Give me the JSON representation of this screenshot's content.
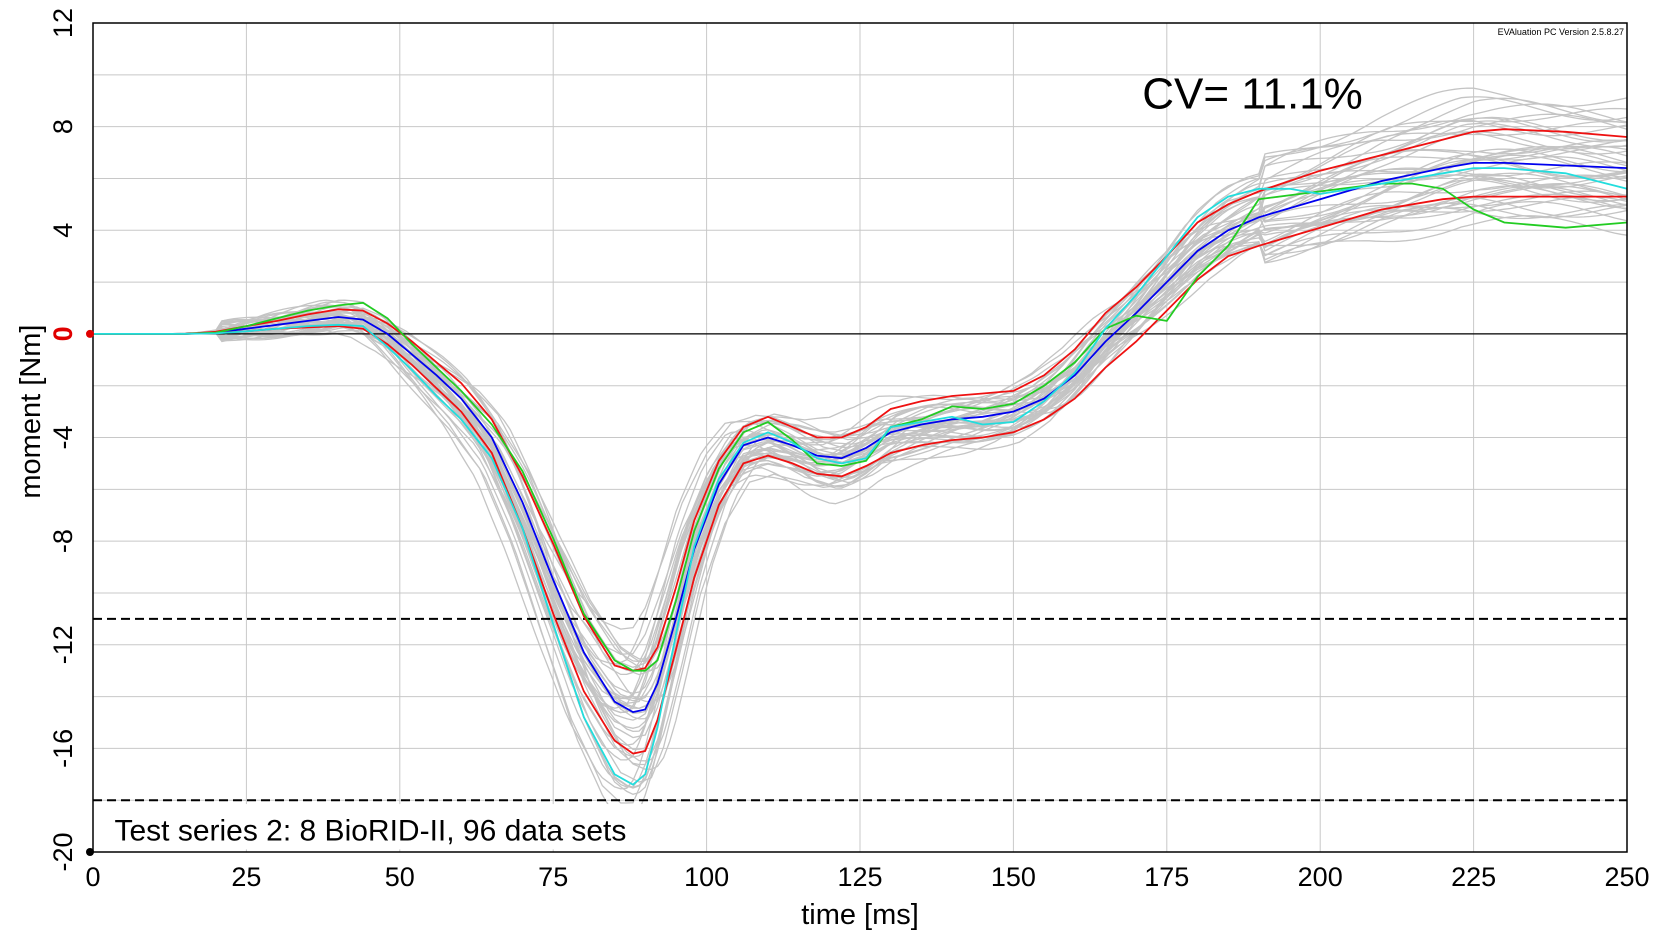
{
  "chart_data": {
    "type": "line",
    "xlabel": "time [ms]",
    "ylabel": "moment [Nm]",
    "xlim": [
      0,
      250
    ],
    "ylim": [
      -20,
      12
    ],
    "x_ticks": [
      0,
      25,
      50,
      75,
      100,
      125,
      150,
      175,
      200,
      225,
      250
    ],
    "y_ticks": [
      -20,
      -16,
      -12,
      -8,
      -4,
      0,
      4,
      8,
      12
    ],
    "minor_y_step": 2,
    "grid": true,
    "annotations": {
      "cv": "CV= 11.1%",
      "series_note": "Test series 2: 8 BioRID-II, 96 data sets",
      "version": "EVAluation PC Version 2.5.8.27"
    },
    "reference_lines": [
      {
        "y": 0,
        "style": "solid",
        "color": "#000000"
      },
      {
        "y": -11,
        "style": "dashed",
        "color": "#000000"
      },
      {
        "y": -18,
        "style": "dashed",
        "color": "#000000"
      }
    ],
    "highlighted_zero_label_color": "#e00000",
    "grey_band": {
      "count": 96,
      "color": "#c4c4c4",
      "note": "individual data sets scattered around mean"
    },
    "series": [
      {
        "color": "#0000ee",
        "x": [
          0,
          15,
          20,
          25,
          30,
          35,
          40,
          44,
          48,
          52,
          56,
          60,
          65,
          70,
          75,
          80,
          85,
          88,
          90,
          92,
          95,
          98,
          102,
          106,
          110,
          114,
          118,
          122,
          126,
          130,
          135,
          140,
          145,
          150,
          155,
          160,
          165,
          170,
          175,
          180,
          185,
          190,
          200,
          210,
          220,
          225,
          230,
          240,
          250
        ],
        "y": [
          0,
          0,
          0.05,
          0.2,
          0.35,
          0.5,
          0.65,
          0.55,
          0,
          -0.8,
          -1.6,
          -2.5,
          -4,
          -6.5,
          -9.5,
          -12.3,
          -14.2,
          -14.6,
          -14.5,
          -13.5,
          -11,
          -8.3,
          -5.8,
          -4.3,
          -4.0,
          -4.3,
          -4.7,
          -4.8,
          -4.4,
          -3.8,
          -3.5,
          -3.3,
          -3.2,
          -3.0,
          -2.5,
          -1.6,
          -0.3,
          0.8,
          2.0,
          3.2,
          4.0,
          4.5,
          5.2,
          5.9,
          6.4,
          6.6,
          6.6,
          6.5,
          6.4
        ]
      },
      {
        "color": "#ee1111",
        "x": [
          0,
          15,
          20,
          25,
          30,
          35,
          40,
          44,
          48,
          52,
          56,
          60,
          65,
          70,
          75,
          80,
          85,
          88,
          90,
          92,
          95,
          98,
          102,
          106,
          110,
          114,
          118,
          122,
          126,
          130,
          135,
          140,
          145,
          150,
          155,
          160,
          165,
          170,
          175,
          180,
          185,
          190,
          200,
          210,
          220,
          225,
          230,
          240,
          250
        ],
        "y": [
          0,
          0,
          0.08,
          0.3,
          0.5,
          0.75,
          0.95,
          0.9,
          0.4,
          -0.3,
          -1.1,
          -1.9,
          -3.3,
          -5.5,
          -8.1,
          -10.9,
          -12.8,
          -13.0,
          -12.9,
          -12.1,
          -9.8,
          -7.2,
          -4.9,
          -3.6,
          -3.2,
          -3.6,
          -4.0,
          -4.0,
          -3.6,
          -2.9,
          -2.6,
          -2.4,
          -2.3,
          -2.2,
          -1.6,
          -0.6,
          0.8,
          1.8,
          3.0,
          4.3,
          5.0,
          5.5,
          6.3,
          6.9,
          7.5,
          7.8,
          7.9,
          7.8,
          7.6
        ]
      },
      {
        "color": "#ee1111",
        "x": [
          0,
          15,
          20,
          25,
          30,
          35,
          40,
          44,
          48,
          52,
          56,
          60,
          65,
          70,
          75,
          80,
          85,
          88,
          90,
          92,
          95,
          98,
          102,
          106,
          110,
          114,
          118,
          122,
          126,
          130,
          135,
          140,
          145,
          150,
          155,
          160,
          165,
          170,
          175,
          180,
          185,
          190,
          200,
          210,
          220,
          225,
          230,
          240,
          250
        ],
        "y": [
          0,
          0,
          0.03,
          0.1,
          0.2,
          0.25,
          0.3,
          0.2,
          -0.4,
          -1.2,
          -2.1,
          -3.0,
          -4.6,
          -7.5,
          -10.8,
          -13.8,
          -15.7,
          -16.2,
          -16.1,
          -14.9,
          -12.2,
          -9.4,
          -6.6,
          -5.0,
          -4.7,
          -5.0,
          -5.4,
          -5.5,
          -5.1,
          -4.6,
          -4.3,
          -4.1,
          -4.0,
          -3.8,
          -3.3,
          -2.5,
          -1.3,
          -0.3,
          0.9,
          2.1,
          3.0,
          3.4,
          4.1,
          4.8,
          5.2,
          5.3,
          5.3,
          5.3,
          5.3
        ]
      },
      {
        "color": "#22cc22",
        "x": [
          0,
          15,
          20,
          25,
          30,
          35,
          40,
          44,
          48,
          52,
          56,
          60,
          65,
          70,
          75,
          80,
          85,
          88,
          90,
          92,
          95,
          98,
          102,
          106,
          110,
          114,
          118,
          122,
          126,
          130,
          135,
          140,
          145,
          150,
          155,
          160,
          165,
          170,
          175,
          180,
          185,
          190,
          200,
          210,
          215,
          220,
          225,
          230,
          240,
          250
        ],
        "y": [
          0,
          0,
          0.05,
          0.3,
          0.6,
          0.9,
          1.1,
          1.2,
          0.6,
          -0.4,
          -1.3,
          -2.2,
          -3.5,
          -5.3,
          -7.9,
          -10.8,
          -12.6,
          -13.0,
          -13.0,
          -12.6,
          -10.3,
          -7.6,
          -5.2,
          -3.8,
          -3.4,
          -4.1,
          -5.0,
          -5.1,
          -4.9,
          -3.6,
          -3.3,
          -2.8,
          -2.9,
          -2.7,
          -2.0,
          -1.1,
          0.2,
          0.7,
          0.5,
          2.2,
          3.4,
          5.2,
          5.5,
          5.8,
          5.8,
          5.6,
          4.8,
          4.3,
          4.1,
          4.3
        ]
      },
      {
        "color": "#22dddd",
        "x": [
          0,
          15,
          20,
          25,
          30,
          35,
          40,
          44,
          48,
          52,
          56,
          60,
          65,
          70,
          75,
          80,
          85,
          88,
          90,
          92,
          95,
          98,
          102,
          106,
          110,
          114,
          118,
          122,
          126,
          130,
          135,
          140,
          145,
          150,
          155,
          160,
          165,
          170,
          175,
          180,
          185,
          190,
          195,
          200,
          210,
          220,
          225,
          230,
          240,
          250
        ],
        "y": [
          0,
          0,
          0.02,
          0.1,
          0.2,
          0.3,
          0.35,
          0.3,
          -0.5,
          -1.4,
          -2.4,
          -3.3,
          -4.8,
          -7.5,
          -11.2,
          -14.8,
          -17.0,
          -17.4,
          -17.0,
          -15.2,
          -11.6,
          -8.2,
          -5.6,
          -4.2,
          -3.8,
          -4.2,
          -4.8,
          -5.0,
          -4.8,
          -3.6,
          -3.4,
          -3.2,
          -3.5,
          -3.4,
          -2.6,
          -1.5,
          0.2,
          1.5,
          3.0,
          4.5,
          5.3,
          5.6,
          5.6,
          5.4,
          5.8,
          6.2,
          6.4,
          6.4,
          6.2,
          5.6
        ]
      }
    ]
  }
}
